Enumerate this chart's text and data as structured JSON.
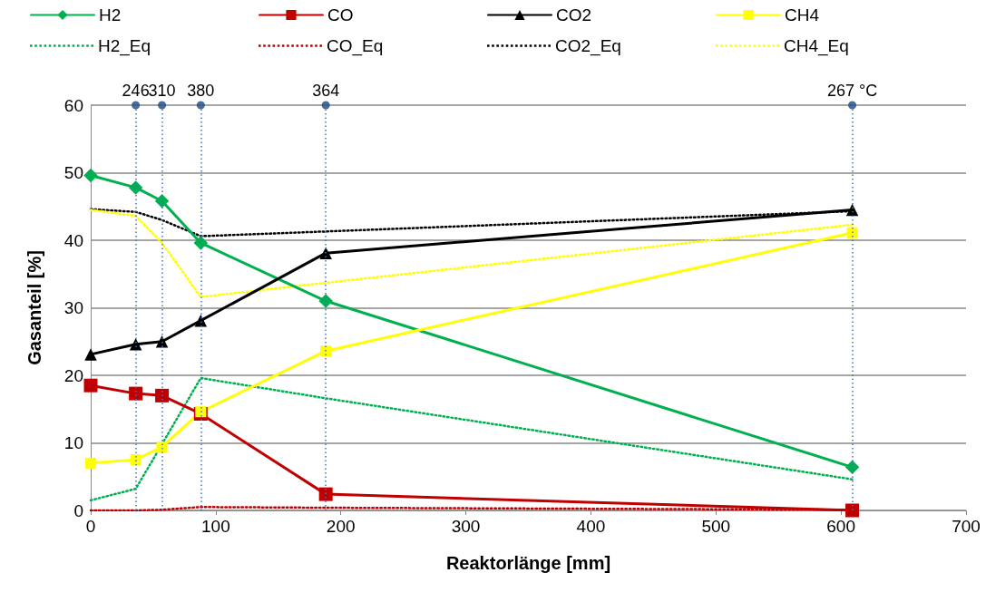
{
  "chart_data": {
    "type": "line",
    "xlabel": "Reaktorlänge [mm]",
    "ylabel": "Gasanteil [%]",
    "x": [
      0,
      36,
      57,
      88,
      188,
      609
    ],
    "xlim": [
      0,
      700
    ],
    "xticks": [
      0,
      100,
      200,
      300,
      400,
      500,
      600,
      700
    ],
    "ylim": [
      0,
      60
    ],
    "yticks": [
      0,
      10,
      20,
      30,
      40,
      50,
      60
    ],
    "grid": "y",
    "legend": "top",
    "line_style": "solid",
    "series": [
      {
        "name": "H2",
        "color": "#00b050",
        "marker": "diamond",
        "values": [
          49.6,
          47.8,
          45.8,
          39.6,
          31.0,
          6.4
        ]
      },
      {
        "name": "CO",
        "color": "#c00000",
        "marker": "square",
        "values": [
          18.5,
          17.3,
          17.0,
          14.3,
          2.4,
          0
        ]
      },
      {
        "name": "CO2",
        "color": "#000000",
        "marker": "triangle",
        "values": [
          23.1,
          24.6,
          25.0,
          28.1,
          38.1,
          44.5
        ]
      },
      {
        "name": "CH4",
        "color": "#ffff00",
        "marker": "square",
        "values": [
          7.0,
          7.5,
          9.4,
          14.6,
          23.6,
          41.1
        ]
      },
      {
        "name": "H2_Eq",
        "color": "#00b050",
        "marker": "none",
        "line_style": "dotted",
        "values": [
          1.5,
          3.2,
          9.8,
          19.6,
          16.6,
          4.6
        ]
      },
      {
        "name": "CO_Eq",
        "color": "#c00000",
        "marker": "none",
        "line_style": "dotted",
        "values": [
          0,
          0,
          0.1,
          0.5,
          0.4,
          0.1
        ]
      },
      {
        "name": "CO2_Eq",
        "color": "#000000",
        "marker": "none",
        "line_style": "dotted",
        "values": [
          44.6,
          44.2,
          43.0,
          40.6,
          41.3,
          44.3
        ]
      },
      {
        "name": "CH4_Eq",
        "color": "#ffff00",
        "marker": "none",
        "line_style": "dotted",
        "values": [
          44.5,
          43.6,
          39.6,
          31.6,
          33.7,
          42.3
        ]
      },
      {
        "type": "scatter",
        "color": "#1f497d",
        "marker": "circle",
        "x": [
          36,
          57,
          88,
          188,
          609
        ],
        "values": [
          60,
          60,
          60,
          60,
          60
        ]
      }
    ],
    "annotations": [
      {
        "text": "246",
        "x": 36,
        "y": 60
      },
      {
        "text": "310",
        "x": 57,
        "y": 60
      },
      {
        "text": "380",
        "x": 88,
        "y": 60
      },
      {
        "text": "364",
        "x": 188,
        "y": 60
      },
      {
        "text": "267 °C",
        "x": 609,
        "y": 60
      }
    ],
    "ref_lines": [
      {
        "axis": "x",
        "value": 36,
        "color": "#4472c4",
        "line_style": "dotted"
      },
      {
        "axis": "x",
        "value": 57,
        "color": "#4472c4",
        "line_style": "dotted"
      },
      {
        "axis": "x",
        "value": 88,
        "color": "#4472c4",
        "line_style": "dotted"
      },
      {
        "axis": "x",
        "value": 188,
        "color": "#4472c4",
        "line_style": "dotted"
      },
      {
        "axis": "x",
        "value": 609,
        "color": "#4472c4",
        "line_style": "dotted"
      }
    ]
  }
}
